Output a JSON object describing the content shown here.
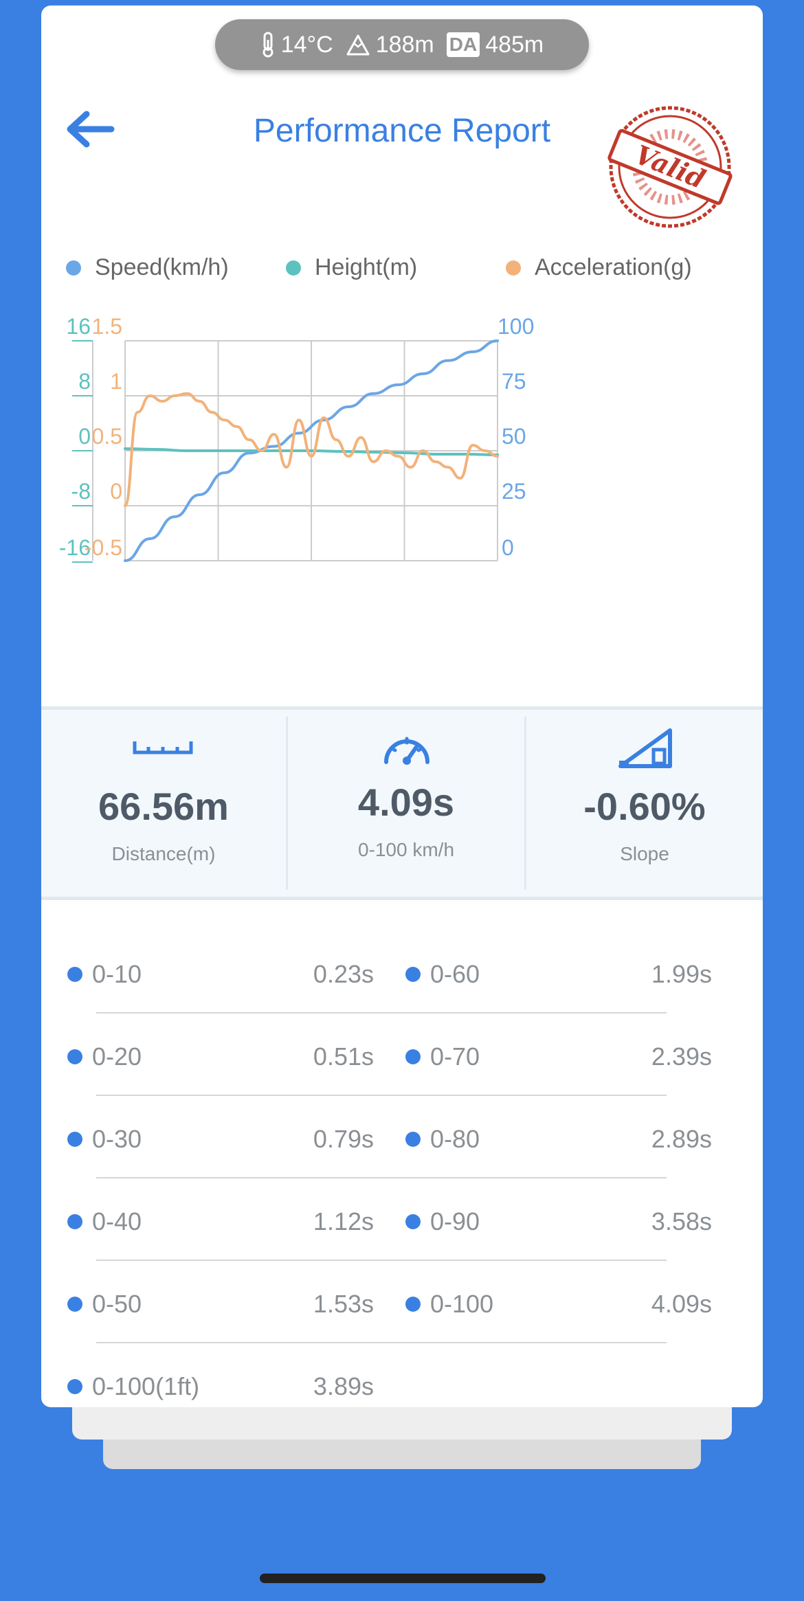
{
  "conditions": {
    "temperature": "14°C",
    "altitude": "188m",
    "da_label": "DA",
    "density_altitude": "485m"
  },
  "header": {
    "title": "Performance Report",
    "stamp_text": "Valid",
    "back_icon": "arrow-left-icon"
  },
  "legend": [
    {
      "label": "Speed(km/h)",
      "color": "#6ba6e6"
    },
    {
      "label": "Height(m)",
      "color": "#5cc2bf"
    },
    {
      "label": "Acceleration(g)",
      "color": "#f2b27a"
    }
  ],
  "chart_data": {
    "type": "line",
    "grid": true,
    "axes": {
      "height_ticks": [
        "16",
        "8",
        "0",
        "-8",
        "-16"
      ],
      "accel_ticks": [
        "1.5",
        "1",
        "0.5",
        "0",
        "-0.5"
      ],
      "speed_ticks": [
        "100",
        "75",
        "50",
        "25",
        "0"
      ],
      "height_range": [
        -16,
        16
      ],
      "accel_range": [
        -0.5,
        1.5
      ],
      "speed_range": [
        0,
        100
      ]
    },
    "series": [
      {
        "name": "Speed(km/h)",
        "color": "#6ba6e6",
        "values": [
          0,
          10,
          20,
          30,
          40,
          49,
          52,
          58,
          64,
          70,
          76,
          80,
          85,
          91,
          95,
          100
        ]
      },
      {
        "name": "Height(m)",
        "color": "#5cc2bf",
        "values": [
          0.3,
          0.2,
          0,
          0,
          0,
          0,
          0,
          -0.1,
          -0.2,
          -0.3,
          -0.5,
          -0.5,
          -0.6
        ]
      },
      {
        "name": "Acceleration(g)",
        "color": "#f2b27a",
        "values": [
          0,
          0.85,
          1.0,
          0.95,
          1.0,
          1.02,
          0.95,
          0.85,
          0.78,
          0.72,
          0.6,
          0.5,
          0.65,
          0.35,
          0.78,
          0.45,
          0.8,
          0.6,
          0.45,
          0.62,
          0.4,
          0.5,
          0.45,
          0.35,
          0.5,
          0.4,
          0.35,
          0.25,
          0.55,
          0.5,
          0.45
        ]
      }
    ]
  },
  "stats": [
    {
      "value": "66.56m",
      "label": "Distance(m)",
      "icon": "ruler-icon"
    },
    {
      "value": "4.09s",
      "label": "0-100 km/h",
      "icon": "speedometer-icon"
    },
    {
      "value": "-0.60%",
      "label": "Slope",
      "icon": "slope-icon"
    }
  ],
  "splits": [
    {
      "label": "0-10",
      "value": "0.23s"
    },
    {
      "label": "0-60",
      "value": "1.99s"
    },
    {
      "label": "0-20",
      "value": "0.51s"
    },
    {
      "label": "0-70",
      "value": "2.39s"
    },
    {
      "label": "0-30",
      "value": "0.79s"
    },
    {
      "label": "0-80",
      "value": "2.89s"
    },
    {
      "label": "0-40",
      "value": "1.12s"
    },
    {
      "label": "0-90",
      "value": "3.58s"
    },
    {
      "label": "0-50",
      "value": "1.53s"
    },
    {
      "label": "0-100",
      "value": "4.09s"
    },
    {
      "label": "0-100(1ft)",
      "value": "3.89s"
    }
  ]
}
